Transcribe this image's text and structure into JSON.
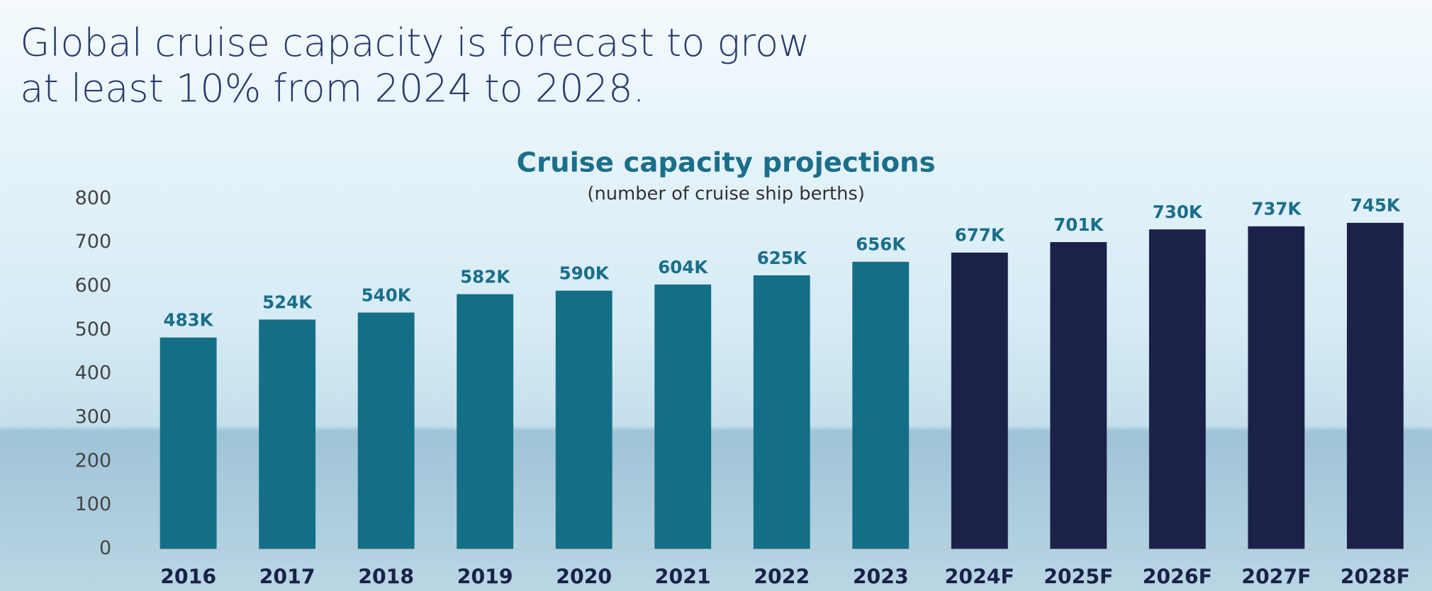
{
  "headline": [
    "Global cruise capacity is forecast to grow",
    "at least 10% from 2024 to 2028."
  ],
  "chart_data": {
    "type": "bar",
    "title": "Cruise capacity projections",
    "subtitle": "(number of cruise ship berths)",
    "categories": [
      "2016",
      "2017",
      "2018",
      "2019",
      "2020",
      "2021",
      "2022",
      "2023",
      "2024F",
      "2025F",
      "2026F",
      "2027F",
      "2028F"
    ],
    "values": [
      483,
      524,
      540,
      582,
      590,
      604,
      625,
      656,
      677,
      701,
      730,
      737,
      745
    ],
    "value_labels": [
      "483K",
      "524K",
      "540K",
      "582K",
      "590K",
      "604K",
      "625K",
      "656K",
      "677K",
      "701K",
      "730K",
      "737K",
      "745K"
    ],
    "colors": [
      "#136f86",
      "#136f86",
      "#136f86",
      "#136f86",
      "#136f86",
      "#136f86",
      "#136f86",
      "#136f86",
      "#1b2149",
      "#1b2149",
      "#1b2149",
      "#1b2149",
      "#1b2149"
    ],
    "ylim": [
      0,
      800
    ],
    "yticks": [
      0,
      100,
      200,
      300,
      400,
      500,
      600,
      700,
      800
    ],
    "grid": false
  }
}
